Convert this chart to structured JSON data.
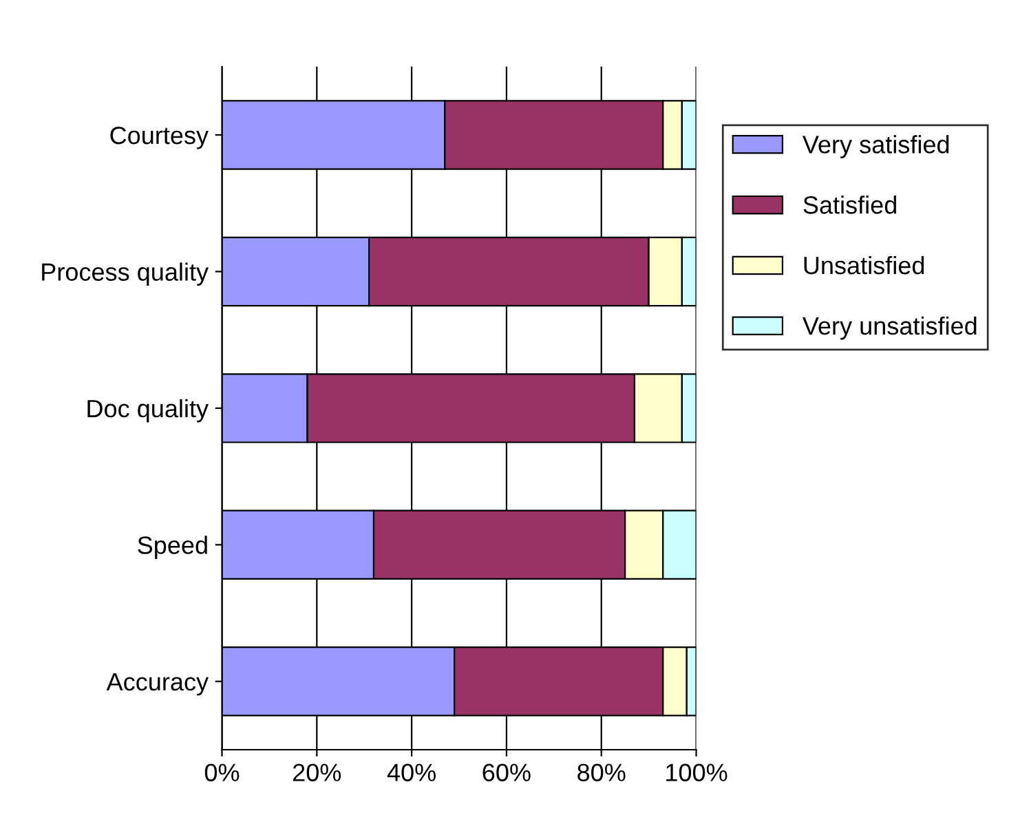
{
  "chart_data": {
    "type": "bar",
    "orientation": "horizontal",
    "stacked": true,
    "categories": [
      "Courtesy",
      "Process quality",
      "Doc quality",
      "Speed",
      "Accuracy"
    ],
    "series": [
      {
        "name": "Very satisfied",
        "color": "#9999ff",
        "values": [
          47,
          31,
          18,
          32,
          49
        ]
      },
      {
        "name": "Satisfied",
        "color": "#993366",
        "values": [
          46,
          59,
          69,
          53,
          44
        ]
      },
      {
        "name": "Unsatisfied",
        "color": "#ffffcc",
        "values": [
          4,
          7,
          10,
          8,
          5
        ]
      },
      {
        "name": "Very unsatisfied",
        "color": "#ccffff",
        "values": [
          3,
          3,
          3,
          7,
          2
        ]
      }
    ],
    "xlim": [
      0,
      100
    ],
    "xticks": [
      {
        "value": 0,
        "label": "0%"
      },
      {
        "value": 20,
        "label": "20%"
      },
      {
        "value": 40,
        "label": "40%"
      },
      {
        "value": 60,
        "label": "60%"
      },
      {
        "value": 80,
        "label": "80%"
      },
      {
        "value": 100,
        "label": "100%"
      }
    ],
    "grid": "x",
    "legend": "right"
  }
}
